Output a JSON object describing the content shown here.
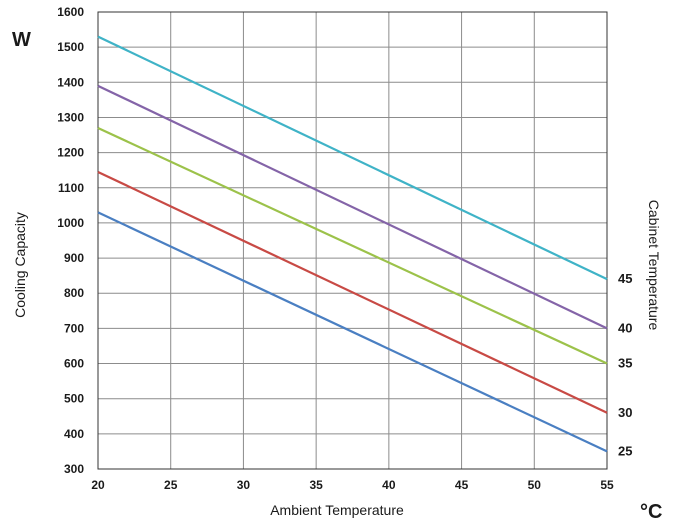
{
  "chart_data": {
    "type": "line",
    "x": [
      20,
      55
    ],
    "xlabel": "Ambient Temperature",
    "ylabel": "Cooling Capacity",
    "y_unit": "W",
    "x_unit": "°C",
    "right_label": "Cabinet Temperature",
    "xlim": [
      20,
      55
    ],
    "ylim": [
      300,
      1600
    ],
    "x_ticks": [
      20,
      25,
      30,
      35,
      40,
      45,
      50,
      55
    ],
    "y_ticks": [
      300,
      400,
      500,
      600,
      700,
      800,
      900,
      1000,
      1100,
      1200,
      1300,
      1400,
      1500,
      1600
    ],
    "grid": true,
    "series": [
      {
        "name": "45",
        "color": "#3fb3c7",
        "values": [
          1530,
          840
        ]
      },
      {
        "name": "40",
        "color": "#8464a8",
        "values": [
          1390,
          700
        ]
      },
      {
        "name": "35",
        "color": "#9cc24a",
        "values": [
          1270,
          600
        ]
      },
      {
        "name": "30",
        "color": "#c84a45",
        "values": [
          1145,
          460
        ]
      },
      {
        "name": "25",
        "color": "#4a7fc2",
        "values": [
          1030,
          350
        ]
      }
    ]
  }
}
